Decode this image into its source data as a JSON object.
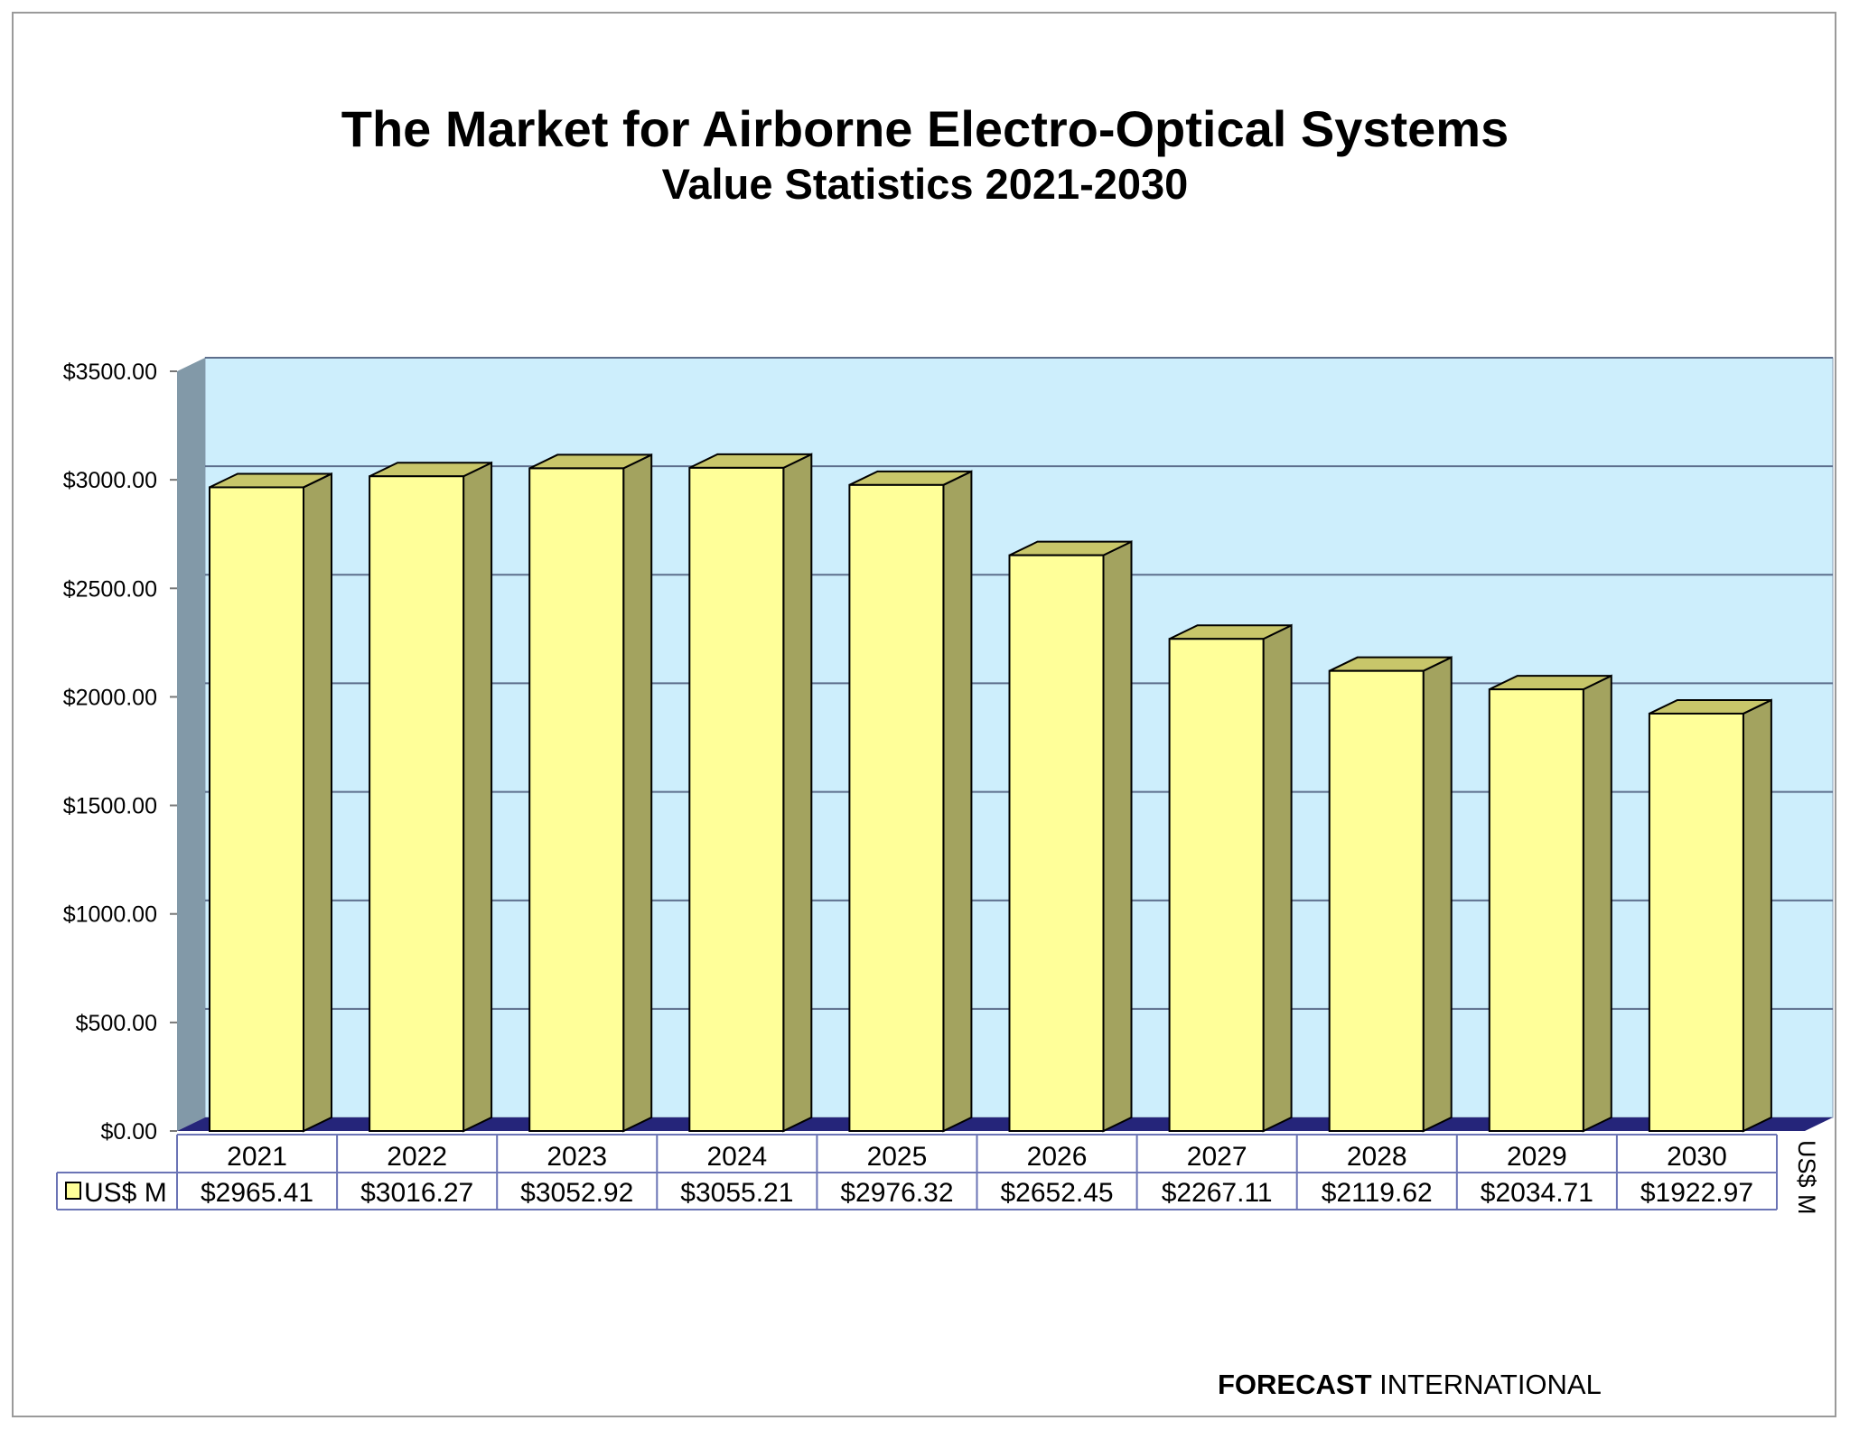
{
  "chart_data": {
    "type": "bar",
    "title": "The Market for Airborne Electro-Optical Systems",
    "subtitle": "Value Statistics 2021-2030",
    "categories": [
      "2021",
      "2022",
      "2023",
      "2024",
      "2025",
      "2026",
      "2027",
      "2028",
      "2029",
      "2030"
    ],
    "series": [
      {
        "name": "US$ M",
        "values": [
          2965.41,
          3016.27,
          3052.92,
          3055.21,
          2976.32,
          2652.45,
          2267.11,
          2119.62,
          2034.71,
          1922.97
        ],
        "value_labels": [
          "$2965.41",
          "$3016.27",
          "$3052.92",
          "$3055.21",
          "$2976.32",
          "$2652.45",
          "$2267.11",
          "$2119.62",
          "$2034.71",
          "$1922.97"
        ]
      }
    ],
    "ylim": [
      0,
      3500
    ],
    "yticks": [
      "$0.00",
      "$500.00",
      "$1000.00",
      "$1500.00",
      "$2000.00",
      "$2500.00",
      "$3000.00",
      "$3500.00"
    ],
    "ylabel": "US$ M",
    "grid": true,
    "legend": "data-table",
    "colors": {
      "bar_front": "#ffff99",
      "bar_side": "#a3a35f",
      "bar_top": "#c8c66a",
      "wall": "#cdeefc",
      "floor": "#25257a",
      "side_wall": "#8299a8",
      "grid": "#5d6e8c",
      "table_border": "#6b74b5"
    }
  },
  "footer": {
    "brand_bold": "FORECAST",
    "brand_rest": "INTERNATIONAL"
  }
}
